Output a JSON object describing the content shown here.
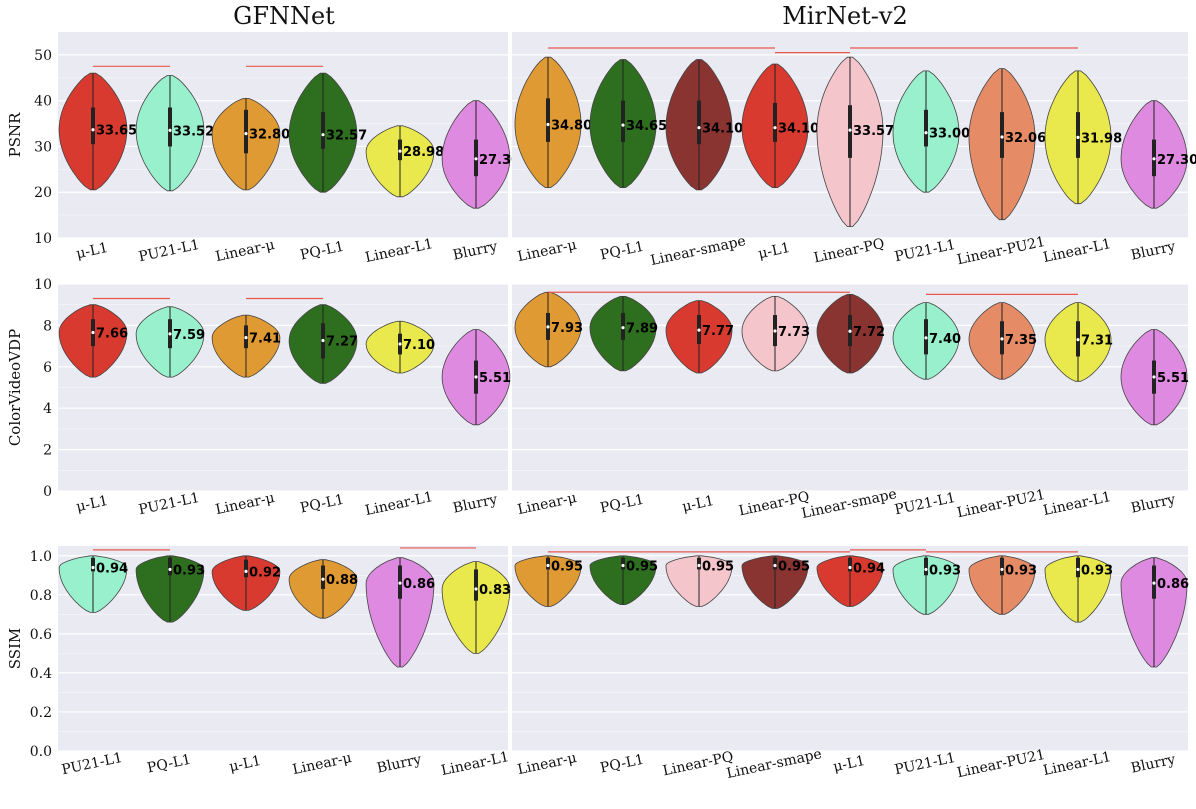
{
  "panel_titles": [
    "GFNNet",
    "MirNet-v2"
  ],
  "chart_data": [
    {
      "type": "violin",
      "panel": "GFNNet",
      "ylabel": "PSNR",
      "ylim": [
        10,
        55
      ],
      "yticks": [
        "10",
        "20",
        "30",
        "40",
        "50"
      ],
      "grid": true,
      "violins": [
        {
          "label": "μ-L1",
          "mean_label": "33.65",
          "mean": 33.65,
          "min": 20.5,
          "max": 46.0,
          "q1": 30.5,
          "q3": 38.5,
          "color": "#d93a2f"
        },
        {
          "label": "PU21-L1",
          "mean_label": "33.52",
          "mean": 33.52,
          "min": 20.3,
          "max": 45.5,
          "q1": 30.0,
          "q3": 38.5,
          "color": "#98f0cc"
        },
        {
          "label": "Linear-μ",
          "mean_label": "32.80",
          "mean": 32.8,
          "min": 20.5,
          "max": 40.5,
          "q1": 28.5,
          "q3": 38.0,
          "color": "#e09a34"
        },
        {
          "label": "PQ-L1",
          "mean_label": "32.57",
          "mean": 32.57,
          "min": 20.0,
          "max": 46.0,
          "q1": 29.5,
          "q3": 37.5,
          "color": "#2e6e1f"
        },
        {
          "label": "Linear-L1",
          "mean_label": "28.98",
          "mean": 28.98,
          "min": 19.0,
          "max": 34.5,
          "q1": 27.0,
          "q3": 31.5,
          "color": "#e9e84d"
        },
        {
          "label": "Blurry",
          "mean_label": "27.30",
          "mean": 27.3,
          "min": 16.5,
          "max": 40.0,
          "q1": 23.5,
          "q3": 31.5,
          "color": "#de8ae0"
        }
      ],
      "brackets": [
        [
          0,
          1,
          47.5
        ],
        [
          2,
          3,
          47.5
        ]
      ]
    },
    {
      "type": "violin",
      "panel": "MirNet-v2",
      "ylabel": "",
      "ylim": [
        10,
        55
      ],
      "yticks": [],
      "grid": true,
      "violins": [
        {
          "label": "Linear-μ",
          "mean_label": "34.80",
          "mean": 34.8,
          "min": 21.0,
          "max": 49.5,
          "q1": 31.0,
          "q3": 40.5,
          "color": "#e09a34"
        },
        {
          "label": "PQ-L1",
          "mean_label": "34.65",
          "mean": 34.65,
          "min": 21.0,
          "max": 49.0,
          "q1": 31.0,
          "q3": 40.0,
          "color": "#2e6e1f"
        },
        {
          "label": "Linear-smape",
          "mean_label": "34.10",
          "mean": 34.1,
          "min": 20.5,
          "max": 49.0,
          "q1": 30.5,
          "q3": 40.0,
          "color": "#8a3432"
        },
        {
          "label": "μ-L1",
          "mean_label": "34.10",
          "mean": 34.1,
          "min": 21.0,
          "max": 48.0,
          "q1": 31.0,
          "q3": 39.5,
          "color": "#d93a2f"
        },
        {
          "label": "Linear-PQ",
          "mean_label": "33.57",
          "mean": 33.57,
          "min": 12.5,
          "max": 49.5,
          "q1": 27.5,
          "q3": 39.0,
          "color": "#f5c5cc"
        },
        {
          "label": "PU21-L1",
          "mean_label": "33.00",
          "mean": 33.0,
          "min": 20.0,
          "max": 46.5,
          "q1": 30.0,
          "q3": 38.0,
          "color": "#98f0cc"
        },
        {
          "label": "Linear-PU21",
          "mean_label": "32.06",
          "mean": 32.06,
          "min": 14.0,
          "max": 47.0,
          "q1": 27.5,
          "q3": 37.5,
          "color": "#e58c67"
        },
        {
          "label": "Linear-L1",
          "mean_label": "31.98",
          "mean": 31.98,
          "min": 17.5,
          "max": 46.5,
          "q1": 27.5,
          "q3": 37.5,
          "color": "#e9e84d"
        },
        {
          "label": "Blurry",
          "mean_label": "27.30",
          "mean": 27.3,
          "min": 16.5,
          "max": 40.0,
          "q1": 23.5,
          "q3": 31.5,
          "color": "#de8ae0"
        }
      ],
      "brackets": [
        [
          0,
          3,
          51.5
        ],
        [
          3,
          4,
          50.5
        ],
        [
          4,
          7,
          51.5
        ]
      ]
    },
    {
      "type": "violin",
      "panel": "GFNNet",
      "ylabel": "ColorVideoVDP",
      "ylim": [
        0,
        10
      ],
      "yticks": [
        "0",
        "2",
        "4",
        "6",
        "8",
        "10"
      ],
      "grid": true,
      "violins": [
        {
          "label": "μ-L1",
          "mean_label": "7.66",
          "mean": 7.66,
          "min": 5.5,
          "max": 9.0,
          "q1": 7.0,
          "q3": 8.3,
          "color": "#d93a2f"
        },
        {
          "label": "PU21-L1",
          "mean_label": "7.59",
          "mean": 7.59,
          "min": 5.5,
          "max": 8.9,
          "q1": 6.9,
          "q3": 8.3,
          "color": "#98f0cc"
        },
        {
          "label": "Linear-μ",
          "mean_label": "7.41",
          "mean": 7.41,
          "min": 5.5,
          "max": 8.5,
          "q1": 6.9,
          "q3": 8.0,
          "color": "#e09a34"
        },
        {
          "label": "PQ-L1",
          "mean_label": "7.27",
          "mean": 7.27,
          "min": 5.2,
          "max": 9.0,
          "q1": 6.4,
          "q3": 8.1,
          "color": "#2e6e1f"
        },
        {
          "label": "Linear-L1",
          "mean_label": "7.10",
          "mean": 7.1,
          "min": 5.7,
          "max": 8.2,
          "q1": 6.6,
          "q3": 7.6,
          "color": "#e9e84d"
        },
        {
          "label": "Blurry",
          "mean_label": "5.51",
          "mean": 5.51,
          "min": 3.2,
          "max": 7.8,
          "q1": 4.7,
          "q3": 6.3,
          "color": "#de8ae0"
        }
      ],
      "brackets": [
        [
          0,
          1,
          9.3
        ],
        [
          2,
          3,
          9.3
        ]
      ]
    },
    {
      "type": "violin",
      "panel": "MirNet-v2",
      "ylabel": "",
      "ylim": [
        0,
        10
      ],
      "yticks": [],
      "grid": true,
      "violins": [
        {
          "label": "Linear-μ",
          "mean_label": "7.93",
          "mean": 7.93,
          "min": 6.0,
          "max": 9.6,
          "q1": 7.3,
          "q3": 8.6,
          "color": "#e09a34"
        },
        {
          "label": "PQ-L1",
          "mean_label": "7.89",
          "mean": 7.89,
          "min": 5.8,
          "max": 9.4,
          "q1": 7.3,
          "q3": 8.6,
          "color": "#2e6e1f"
        },
        {
          "label": "μ-L1",
          "mean_label": "7.77",
          "mean": 7.77,
          "min": 5.7,
          "max": 9.2,
          "q1": 7.1,
          "q3": 8.5,
          "color": "#d93a2f"
        },
        {
          "label": "Linear-PQ",
          "mean_label": "7.73",
          "mean": 7.73,
          "min": 5.8,
          "max": 9.4,
          "q1": 7.0,
          "q3": 8.5,
          "color": "#f5c5cc"
        },
        {
          "label": "Linear-smape",
          "mean_label": "7.72",
          "mean": 7.72,
          "min": 5.7,
          "max": 9.5,
          "q1": 7.0,
          "q3": 8.5,
          "color": "#8a3432"
        },
        {
          "label": "PU21-L1",
          "mean_label": "7.40",
          "mean": 7.4,
          "min": 5.4,
          "max": 9.1,
          "q1": 6.6,
          "q3": 8.3,
          "color": "#98f0cc"
        },
        {
          "label": "Linear-PU21",
          "mean_label": "7.35",
          "mean": 7.35,
          "min": 5.4,
          "max": 9.1,
          "q1": 6.6,
          "q3": 8.2,
          "color": "#e58c67"
        },
        {
          "label": "Linear-L1",
          "mean_label": "7.31",
          "mean": 7.31,
          "min": 5.3,
          "max": 9.1,
          "q1": 6.5,
          "q3": 8.2,
          "color": "#e9e84d"
        },
        {
          "label": "Blurry",
          "mean_label": "5.51",
          "mean": 5.51,
          "min": 3.2,
          "max": 7.8,
          "q1": 4.7,
          "q3": 6.3,
          "color": "#de8ae0"
        }
      ],
      "brackets": [
        [
          0,
          4,
          9.6
        ],
        [
          5,
          7,
          9.5
        ]
      ]
    },
    {
      "type": "violin",
      "panel": "GFNNet",
      "ylabel": "SSIM",
      "ylim": [
        0,
        1.05
      ],
      "yticks": [
        "0.0",
        "0.2",
        "0.4",
        "0.6",
        "0.8",
        "1.0"
      ],
      "grid": true,
      "violins": [
        {
          "label": "PU21-L1",
          "mean_label": "0.94",
          "mean": 0.94,
          "min": 0.71,
          "max": 1.0,
          "q1": 0.92,
          "q3": 0.99,
          "color": "#98f0cc"
        },
        {
          "label": "PQ-L1",
          "mean_label": "0.93",
          "mean": 0.93,
          "min": 0.66,
          "max": 1.0,
          "q1": 0.9,
          "q3": 0.99,
          "color": "#2e6e1f"
        },
        {
          "label": "μ-L1",
          "mean_label": "0.92",
          "mean": 0.92,
          "min": 0.72,
          "max": 1.0,
          "q1": 0.89,
          "q3": 0.98,
          "color": "#d93a2f"
        },
        {
          "label": "Linear-μ",
          "mean_label": "0.88",
          "mean": 0.88,
          "min": 0.68,
          "max": 0.98,
          "q1": 0.83,
          "q3": 0.95,
          "color": "#e09a34"
        },
        {
          "label": "Blurry",
          "mean_label": "0.86",
          "mean": 0.86,
          "min": 0.43,
          "max": 0.99,
          "q1": 0.78,
          "q3": 0.95,
          "color": "#de8ae0"
        },
        {
          "label": "Linear-L1",
          "mean_label": "0.83",
          "mean": 0.83,
          "min": 0.5,
          "max": 0.97,
          "q1": 0.77,
          "q3": 0.93,
          "color": "#e9e84d"
        }
      ],
      "brackets": [
        [
          0,
          1,
          1.03
        ],
        [
          4,
          5,
          1.04
        ]
      ]
    },
    {
      "type": "violin",
      "panel": "MirNet-v2",
      "ylabel": "",
      "ylim": [
        0,
        1.05
      ],
      "yticks": [],
      "grid": true,
      "violins": [
        {
          "label": "Linear-μ",
          "mean_label": "0.95",
          "mean": 0.95,
          "min": 0.74,
          "max": 1.0,
          "q1": 0.93,
          "q3": 0.99,
          "color": "#e09a34"
        },
        {
          "label": "PQ-L1",
          "mean_label": "0.95",
          "mean": 0.95,
          "min": 0.75,
          "max": 1.0,
          "q1": 0.93,
          "q3": 0.99,
          "color": "#2e6e1f"
        },
        {
          "label": "Linear-PQ",
          "mean_label": "0.95",
          "mean": 0.95,
          "min": 0.74,
          "max": 1.0,
          "q1": 0.93,
          "q3": 0.99,
          "color": "#f5c5cc"
        },
        {
          "label": "Linear-smape",
          "mean_label": "0.95",
          "mean": 0.95,
          "min": 0.73,
          "max": 1.0,
          "q1": 0.93,
          "q3": 0.99,
          "color": "#8a3432"
        },
        {
          "label": "μ-L1",
          "mean_label": "0.94",
          "mean": 0.94,
          "min": 0.74,
          "max": 1.0,
          "q1": 0.92,
          "q3": 0.99,
          "color": "#d93a2f"
        },
        {
          "label": "PU21-L1",
          "mean_label": "0.93",
          "mean": 0.93,
          "min": 0.7,
          "max": 1.0,
          "q1": 0.9,
          "q3": 0.99,
          "color": "#98f0cc"
        },
        {
          "label": "Linear-PU21",
          "mean_label": "0.93",
          "mean": 0.93,
          "min": 0.7,
          "max": 1.0,
          "q1": 0.9,
          "q3": 0.99,
          "color": "#e58c67"
        },
        {
          "label": "Linear-L1",
          "mean_label": "0.93",
          "mean": 0.93,
          "min": 0.66,
          "max": 1.0,
          "q1": 0.89,
          "q3": 0.99,
          "color": "#e9e84d"
        },
        {
          "label": "Blurry",
          "mean_label": "0.86",
          "mean": 0.86,
          "min": 0.43,
          "max": 0.99,
          "q1": 0.78,
          "q3": 0.95,
          "color": "#de8ae0"
        }
      ],
      "brackets": [
        [
          0,
          4,
          1.02
        ],
        [
          4,
          5,
          1.03
        ],
        [
          5,
          7,
          1.02
        ]
      ]
    }
  ]
}
